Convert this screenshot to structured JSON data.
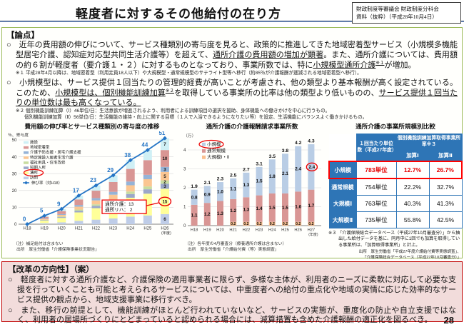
{
  "page": {
    "title": "軽度者に対するその他給付の在り方",
    "source_box": [
      "財政制度等審議会 財政制度分科会",
      "資料（抜粋）（平成28年10月4日）"
    ],
    "page_number": "28"
  },
  "ronten": {
    "heading": "【論点】",
    "bullet1": [
      {
        "t": "○　近年の費用額の伸びについて、サービス種類別の寄与度を見ると、政策的に推進してきた地域密着型サービス（小規模多機能型居宅介護、認知症対応型共同生活介護等）を超えて、"
      },
      {
        "t": "通所介護の費用額の増加が顕著",
        "u": true
      },
      {
        "t": "。また、通所介護については、費用額の約６割が軽度者（要介護１・２）に対するものとなっており、事業所数では、特に"
      },
      {
        "t": "小規模型通所介護",
        "u": true
      },
      {
        "t": "※１",
        "u": true,
        "sup": true
      },
      {
        "t": "が増加。"
      }
    ],
    "fn1": "※１ 平成28年4月以降は、地域密着型（利用定員18人以下）や大規模型・通常規模型のサテライト型等へ移行（約85％が介護報酬が逓減される地域密着型へ移行）。",
    "bullet2": [
      {
        "t": "○　小規模型は、サービス提供１回当たりの管理的経費が高いことが考慮され、他の類型より基本報酬が高く設定されている。このため、"
      },
      {
        "t": "小規模型は、",
        "u": true
      },
      {
        "t": "個別機能訓練加算",
        "u": true
      },
      {
        "t": "※２",
        "u": true,
        "sup": true
      },
      {
        "t": "を取得している事業所の比率は他の類型より低いものの、"
      },
      {
        "t": "サービス提供１回当たりの単位数は最も高くなっている。",
        "u": true
      }
    ],
    "fn2a": "※２ 個別機能訓練加算（Ⅰ）46単位/日：生活意欲が増進されるよう、利用者による訓練項目の選択を援助、身体機能への働きかけを中心に行うもの。",
    "fn2b": "個別機能訓練加算（Ⅱ）56単位/日：生活機能の維持・向上に関する目標（１人で入浴できるようになりたい等）を設定、生活機能にバランスよく働きかけるもの。"
  },
  "chart_data": [
    {
      "type": "bar",
      "title": "費用額の伸び率とサービス種類別の寄与度の推移",
      "y_axis_label": "％、寄与度",
      "ylim": [
        0,
        50
      ],
      "categories": [
        "H18",
        "H19",
        "H20",
        "H21",
        "H22",
        "H23",
        "H24",
        "H25",
        "H26"
      ],
      "x_suffix": "(年度)",
      "line": {
        "name": "伸び率（対H18）",
        "values": [
          0,
          5,
          9,
          17,
          23,
          29,
          38,
          44,
          51
        ],
        "color": "#2374C5"
      },
      "series": [
        {
          "name": "訪問",
          "color": "#BFCDE8",
          "values": [
            0,
            0.6,
            1.1,
            2.0,
            2.7,
            3.4,
            4.5,
            5.2,
            6
          ]
        },
        {
          "name": "通所",
          "color": "#FFFF99",
          "values": [
            0,
            1.5,
            2.6,
            5.0,
            6.8,
            8.5,
            11.2,
            12.9,
            15
          ],
          "highlight": true
        },
        {
          "name": "短期入所",
          "color": "#9BA7C9",
          "values": [
            0,
            0.3,
            0.5,
            1.0,
            1.4,
            1.7,
            2.2,
            2.6,
            3
          ]
        },
        {
          "name": "福祉用具・住宅改修",
          "color": "#C8DCA0",
          "values": [
            0,
            0.2,
            0.4,
            0.7,
            0.9,
            1.1,
            1.5,
            1.7,
            2
          ]
        },
        {
          "name": "特定施設入居者生活介護",
          "color": "#FBC692",
          "values": [
            0,
            0.5,
            0.9,
            1.7,
            2.3,
            2.8,
            3.7,
            4.3,
            5
          ]
        },
        {
          "name": "介護予防支援・居宅介護支援",
          "color": "#95B3D7",
          "values": [
            0,
            0.3,
            0.5,
            1.0,
            1.4,
            1.7,
            2.2,
            2.6,
            3
          ]
        },
        {
          "name": "地域密着型",
          "color": "#D99694",
          "values": [
            0,
            1.0,
            1.8,
            3.3,
            4.4,
            5.8,
            7.5,
            8.7,
            10
          ]
        },
        {
          "name": "施設",
          "color": "#CFF0F5",
          "values": [
            0,
            0.6,
            1.2,
            2.3,
            3.1,
            4.0,
            5.2,
            6.0,
            7
          ]
        }
      ],
      "legend_order": [
        "施設",
        "地域密着型",
        "介護予防支援・居宅介護支援",
        "特定施設入居者生活介護",
        "福祉用具・住宅改修",
        "短期入所",
        "通所",
        "訪問"
      ],
      "callout": {
        "lines": [
          "通所介護：13",
          "通所リハ： 2"
        ]
      },
      "notes": [
        "（注）補足給付は含まない",
        "出所　厚生労働省「介護保険事業状況報告」"
      ]
    },
    {
      "type": "bar",
      "title": "通所介護の介護報酬請求事業所数",
      "y_axis_label": "（万）",
      "ylim": [
        0,
        4.5
      ],
      "categories": [
        "H18",
        "H19",
        "H20",
        "H21",
        "H22",
        "H23",
        "H24",
        "H25",
        "H26",
        "H27"
      ],
      "x_suffix": "(年度)",
      "series": [
        {
          "name": "大規模Ⅰ・Ⅱ",
          "color": "#FABF8F",
          "values": [
            0,
            0,
            0,
            0.2,
            0.2,
            0.2,
            0.2,
            0.2,
            0.2,
            0.2
          ]
        },
        {
          "name": "通常規模",
          "color": "#D99694",
          "values": [
            1.1,
            1.2,
            1.3,
            1.2,
            1.3,
            1.4,
            1.5,
            1.5,
            1.6,
            1.7
          ]
        },
        {
          "name": "小規模",
          "color": "#B9CDE5",
          "values": [
            0.8,
            0.9,
            1.0,
            1.1,
            1.3,
            1.5,
            1.8,
            2.1,
            2.4,
            2.4
          ],
          "highlight_last": true
        }
      ],
      "totals": [
        1.9,
        2.1,
        2.3,
        2.5,
        2.7,
        3.1,
        3.5,
        3.8,
        4.2,
        4.3
      ],
      "legend_order": [
        "小規模",
        "通常規模",
        "大規模Ⅰ・Ⅱ"
      ],
      "notes": [
        "（注）各年度の4月審査分（療養通所介護は含まない）",
        "出所　厚生労働省「介護給付費（等）実態調査」"
      ]
    },
    {
      "type": "table",
      "title": "通所介護の事業所規模別比較",
      "col_headers": {
        "units": "１回当たり単位数（平成27年度）",
        "kasan_group": "個別機能訓練加算取得事業所率※３",
        "kasan1": "加算Ⅰ",
        "kasan2": "加算Ⅱ"
      },
      "rows": [
        {
          "label": "小規模",
          "units": "783単位",
          "kasan1": "12.7%",
          "kasan2": "26.7%",
          "highlight": true
        },
        {
          "label": "通常規模",
          "units": "754単位",
          "kasan1": "22.2%",
          "kasan2": "32.7%"
        },
        {
          "label": "大規模Ⅰ",
          "units": "763単位",
          "kasan1": "40.3%",
          "kasan2": "41.3%"
        },
        {
          "label": "大規模Ⅱ",
          "units": "735単位",
          "kasan1": "55.8%",
          "kasan2": "42.5%"
        }
      ],
      "note": "※３ 「介護保険総合データベース（平成27年10月審査分）」から抽出した給付データを基に、同月中に1回でも加算を取得している事業所は、「加算取得事業所」と計上。",
      "sources": [
        "出所　厚生労働省「平成27年度介護給付費等実態調査」、",
        "「介護保険総合データベース（平成27年10月審査分）」"
      ]
    }
  ],
  "kaikaku": {
    "heading": "【改革の方向性】（案）",
    "bullet1": "○　軽度者に対する通所介護など、介護保険の適用事業者に限らず、多様な主体が、利用者のニーズに柔軟に対応して必要な支援を行っていくことも可能と考えられるサービスについては、中重度者への給付の重点化や地域の実情に応じた効率的なサービス提供の観点から、地域支援事業に移行すべき。",
    "bullet2": "○　また、移行の前提として、機能訓練がほとんど行われていないなど、サービスの実態が、重度化の防止や自立支援ではなく、利用者の居場所づくりにとどまっていると認められる場合には、減算措置も含めた介護報酬の適正化を図るべき。"
  }
}
